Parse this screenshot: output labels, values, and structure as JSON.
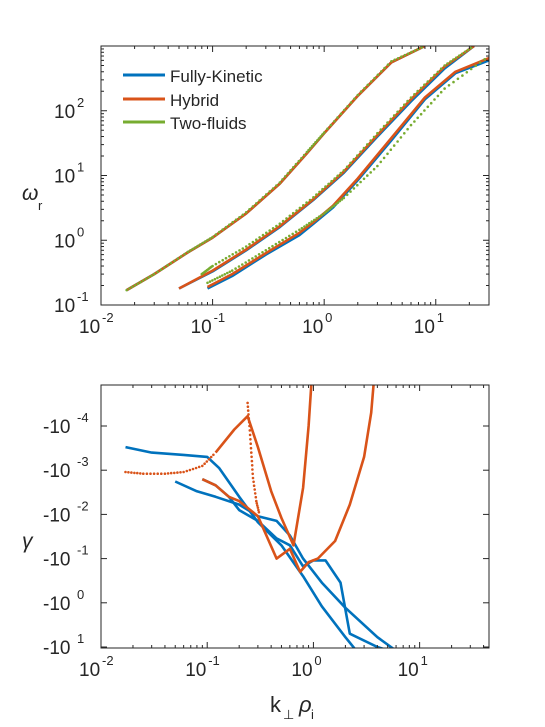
{
  "chart_data": [
    {
      "type": "line",
      "xscale": "log",
      "yscale": "log",
      "xlim": [
        0.01,
        30
      ],
      "ylim": [
        0.1,
        1000
      ],
      "ylabel": "ω",
      "ylabel_sub": "r",
      "xticks": [
        {
          "value": 0.01,
          "base": "10",
          "exp": "-2"
        },
        {
          "value": 0.1,
          "base": "10",
          "exp": "-1"
        },
        {
          "value": 1,
          "base": "10",
          "exp": "0"
        },
        {
          "value": 10,
          "base": "10",
          "exp": "1"
        }
      ],
      "yticks": [
        {
          "value": 0.1,
          "base": "10",
          "exp": "-1"
        },
        {
          "value": 1,
          "base": "10",
          "exp": "0"
        },
        {
          "value": 10,
          "base": "10",
          "exp": "1"
        },
        {
          "value": 100,
          "base": "10",
          "exp": "2"
        }
      ],
      "legend_position": "top-left",
      "legend": [
        {
          "label": "Fully-Kinetic",
          "color": "#0072bd"
        },
        {
          "label": "Hybrid",
          "color": "#d95319"
        },
        {
          "label": "Two-fluids",
          "color": "#77ac30"
        }
      ],
      "series": [
        {
          "name": "Fully-Kinetic",
          "color": "#0072bd",
          "style": "line",
          "x": [
            0.017,
            0.03,
            0.06,
            0.1,
            0.2,
            0.4,
            0.7,
            1.0,
            2.0,
            4.0,
            8.0
          ],
          "y": [
            0.17,
            0.3,
            0.65,
            1.1,
            2.6,
            7.5,
            22,
            45,
            170,
            560,
            1000
          ]
        },
        {
          "name": "Hybrid",
          "color": "#d95319",
          "style": "line",
          "x": [
            0.017,
            0.03,
            0.06,
            0.1,
            0.2,
            0.4,
            0.7,
            1.0,
            2.0,
            4.0,
            8.0
          ],
          "y": [
            0.17,
            0.3,
            0.65,
            1.1,
            2.6,
            7.5,
            22,
            45,
            170,
            560,
            1000
          ]
        },
        {
          "name": "Two-fluids",
          "color": "#77ac30",
          "style": "dots",
          "x": [
            0.017,
            0.03,
            0.06,
            0.1,
            0.2,
            0.4,
            0.7,
            1.0,
            2.0,
            4.0,
            8.0
          ],
          "y": [
            0.17,
            0.3,
            0.66,
            1.12,
            2.7,
            7.8,
            23,
            46,
            175,
            580,
            1000
          ]
        },
        {
          "name": "Fully-Kinetic",
          "color": "#0072bd",
          "style": "line",
          "x": [
            0.05,
            0.1,
            0.2,
            0.4,
            0.8,
            1.5,
            3,
            6,
            12,
            22
          ],
          "y": [
            0.18,
            0.33,
            0.7,
            1.6,
            4.2,
            11,
            40,
            140,
            450,
            1000
          ]
        },
        {
          "name": "Hybrid",
          "color": "#d95319",
          "style": "line",
          "x": [
            0.05,
            0.1,
            0.2,
            0.4,
            0.8,
            1.5,
            3,
            6,
            12,
            22
          ],
          "y": [
            0.18,
            0.34,
            0.72,
            1.65,
            4.3,
            11.5,
            42,
            150,
            480,
            1000
          ]
        },
        {
          "name": "Two-fluids",
          "color": "#77ac30",
          "style": "dots",
          "x": [
            0.08,
            0.1,
            0.2,
            0.4,
            0.8,
            1.5,
            3,
            6,
            12,
            22
          ],
          "y": [
            0.3,
            0.4,
            0.8,
            1.8,
            4.6,
            12,
            45,
            160,
            500,
            1000
          ]
        },
        {
          "name": "Fully-Kinetic",
          "color": "#0072bd",
          "style": "line",
          "x": [
            0.09,
            0.15,
            0.3,
            0.6,
            0.8,
            1.2,
            2,
            4,
            8,
            15,
            30
          ],
          "y": [
            0.18,
            0.28,
            0.6,
            1.2,
            1.8,
            3.2,
            8.5,
            35,
            150,
            380,
            600
          ]
        },
        {
          "name": "Hybrid",
          "color": "#d95319",
          "style": "line",
          "x": [
            0.09,
            0.15,
            0.3,
            0.6,
            0.8,
            1.2,
            2,
            4,
            8,
            15,
            30
          ],
          "y": [
            0.19,
            0.3,
            0.63,
            1.3,
            1.9,
            3.4,
            9,
            38,
            160,
            400,
            650
          ]
        },
        {
          "name": "Two-fluids",
          "color": "#77ac30",
          "style": "dots",
          "x": [
            0.09,
            0.15,
            0.3,
            0.6,
            1.0,
            1.5,
            3,
            6,
            12,
            30
          ],
          "y": [
            0.22,
            0.34,
            0.7,
            1.45,
            2.6,
            4.5,
            14,
            60,
            220,
            700
          ]
        }
      ]
    },
    {
      "type": "line",
      "xscale": "log",
      "xlim": [
        0.01,
        45
      ],
      "xlabel": "k",
      "xlabel_sub1": "⊥",
      "xlabel_mid": "ρ",
      "xlabel_sub2": "i",
      "ylabel": "γ",
      "xticks": [
        {
          "value": 0.01,
          "base": "10",
          "exp": "-2"
        },
        {
          "value": 0.1,
          "base": "10",
          "exp": "-1"
        },
        {
          "value": 1,
          "base": "10",
          "exp": "0"
        },
        {
          "value": 10,
          "base": "10",
          "exp": "1"
        }
      ],
      "yticks": [
        {
          "value": -0.0001,
          "base": "-10",
          "exp": "-4"
        },
        {
          "value": -0.001,
          "base": "-10",
          "exp": "-3"
        },
        {
          "value": -0.01,
          "base": "-10",
          "exp": "-2"
        },
        {
          "value": -0.1,
          "base": "-10",
          "exp": "-1"
        },
        {
          "value": -1,
          "base": "-10",
          "exp": "0"
        },
        {
          "value": -10,
          "base": "-10",
          "exp": "1"
        }
      ],
      "series": [
        {
          "name": "Fully-Kinetic",
          "color": "#0072bd",
          "style": "line",
          "x": [
            0.017,
            0.03,
            0.06,
            0.1,
            0.13,
            0.2,
            0.3,
            0.5,
            0.8,
            1.2,
            2.0,
            3.0
          ],
          "y": [
            -0.0003,
            -0.0004,
            -0.00045,
            -0.0005,
            -0.0009,
            -0.004,
            -0.015,
            -0.05,
            -0.25,
            -1.2,
            -6,
            -20
          ]
        },
        {
          "name": "Fully-Kinetic",
          "color": "#0072bd",
          "style": "line",
          "x": [
            0.05,
            0.08,
            0.12,
            0.2,
            0.3,
            0.45,
            0.6,
            0.8,
            1.2,
            2.0,
            4.0,
            8.0
          ],
          "y": [
            -0.0018,
            -0.003,
            -0.004,
            -0.006,
            -0.011,
            -0.014,
            -0.03,
            -0.1,
            -0.35,
            -1.3,
            -6,
            -20
          ]
        },
        {
          "name": "Fully-Kinetic",
          "color": "#0072bd",
          "style": "line",
          "x": [
            0.09,
            0.12,
            0.16,
            0.2,
            0.3,
            0.45,
            0.6,
            0.8,
            1.0,
            1.3,
            1.8,
            2.2,
            4.0,
            10.0
          ],
          "y": [
            -0.0016,
            -0.0022,
            -0.004,
            -0.008,
            -0.014,
            -0.035,
            -0.05,
            -0.15,
            -0.11,
            -0.11,
            -0.35,
            -5,
            -10,
            -20
          ]
        },
        {
          "name": "Hybrid",
          "color": "#d95319",
          "style": "dots",
          "x": [
            0.017,
            0.025,
            0.04,
            0.06,
            0.09,
            0.12
          ],
          "y": [
            -0.0011,
            -0.0012,
            -0.0012,
            -0.0011,
            -0.0008,
            -0.0004
          ]
        },
        {
          "name": "Hybrid",
          "color": "#d95319",
          "style": "line",
          "x": [
            0.12,
            0.18,
            0.24,
            0.3,
            0.4,
            0.5,
            0.65,
            0.8,
            0.9,
            0.96
          ],
          "y": [
            -0.0004,
            -0.00012,
            -6e-05,
            -0.0003,
            -0.003,
            -0.012,
            -0.05,
            -0.0025,
            -0.0001,
            -1e-05
          ]
        },
        {
          "name": "Hybrid",
          "color": "#d95319",
          "style": "dots",
          "x": [
            0.24,
            0.25,
            0.26,
            0.27,
            0.29,
            0.31
          ],
          "y": [
            -3e-05,
            -0.0001,
            -0.0004,
            -0.0015,
            -0.005,
            -0.01
          ]
        },
        {
          "name": "Hybrid",
          "color": "#d95319",
          "style": "line",
          "x": [
            0.09,
            0.12,
            0.16,
            0.2,
            0.3,
            0.45,
            0.6,
            0.75,
            0.9,
            1.1,
            1.6,
            2.2,
            3.0,
            3.5,
            3.7
          ],
          "y": [
            -0.0016,
            -0.0022,
            -0.004,
            -0.005,
            -0.011,
            -0.1,
            -0.06,
            -0.2,
            -0.12,
            -0.1,
            -0.04,
            -0.006,
            -0.0005,
            -5e-05,
            -1e-05
          ]
        }
      ]
    }
  ]
}
